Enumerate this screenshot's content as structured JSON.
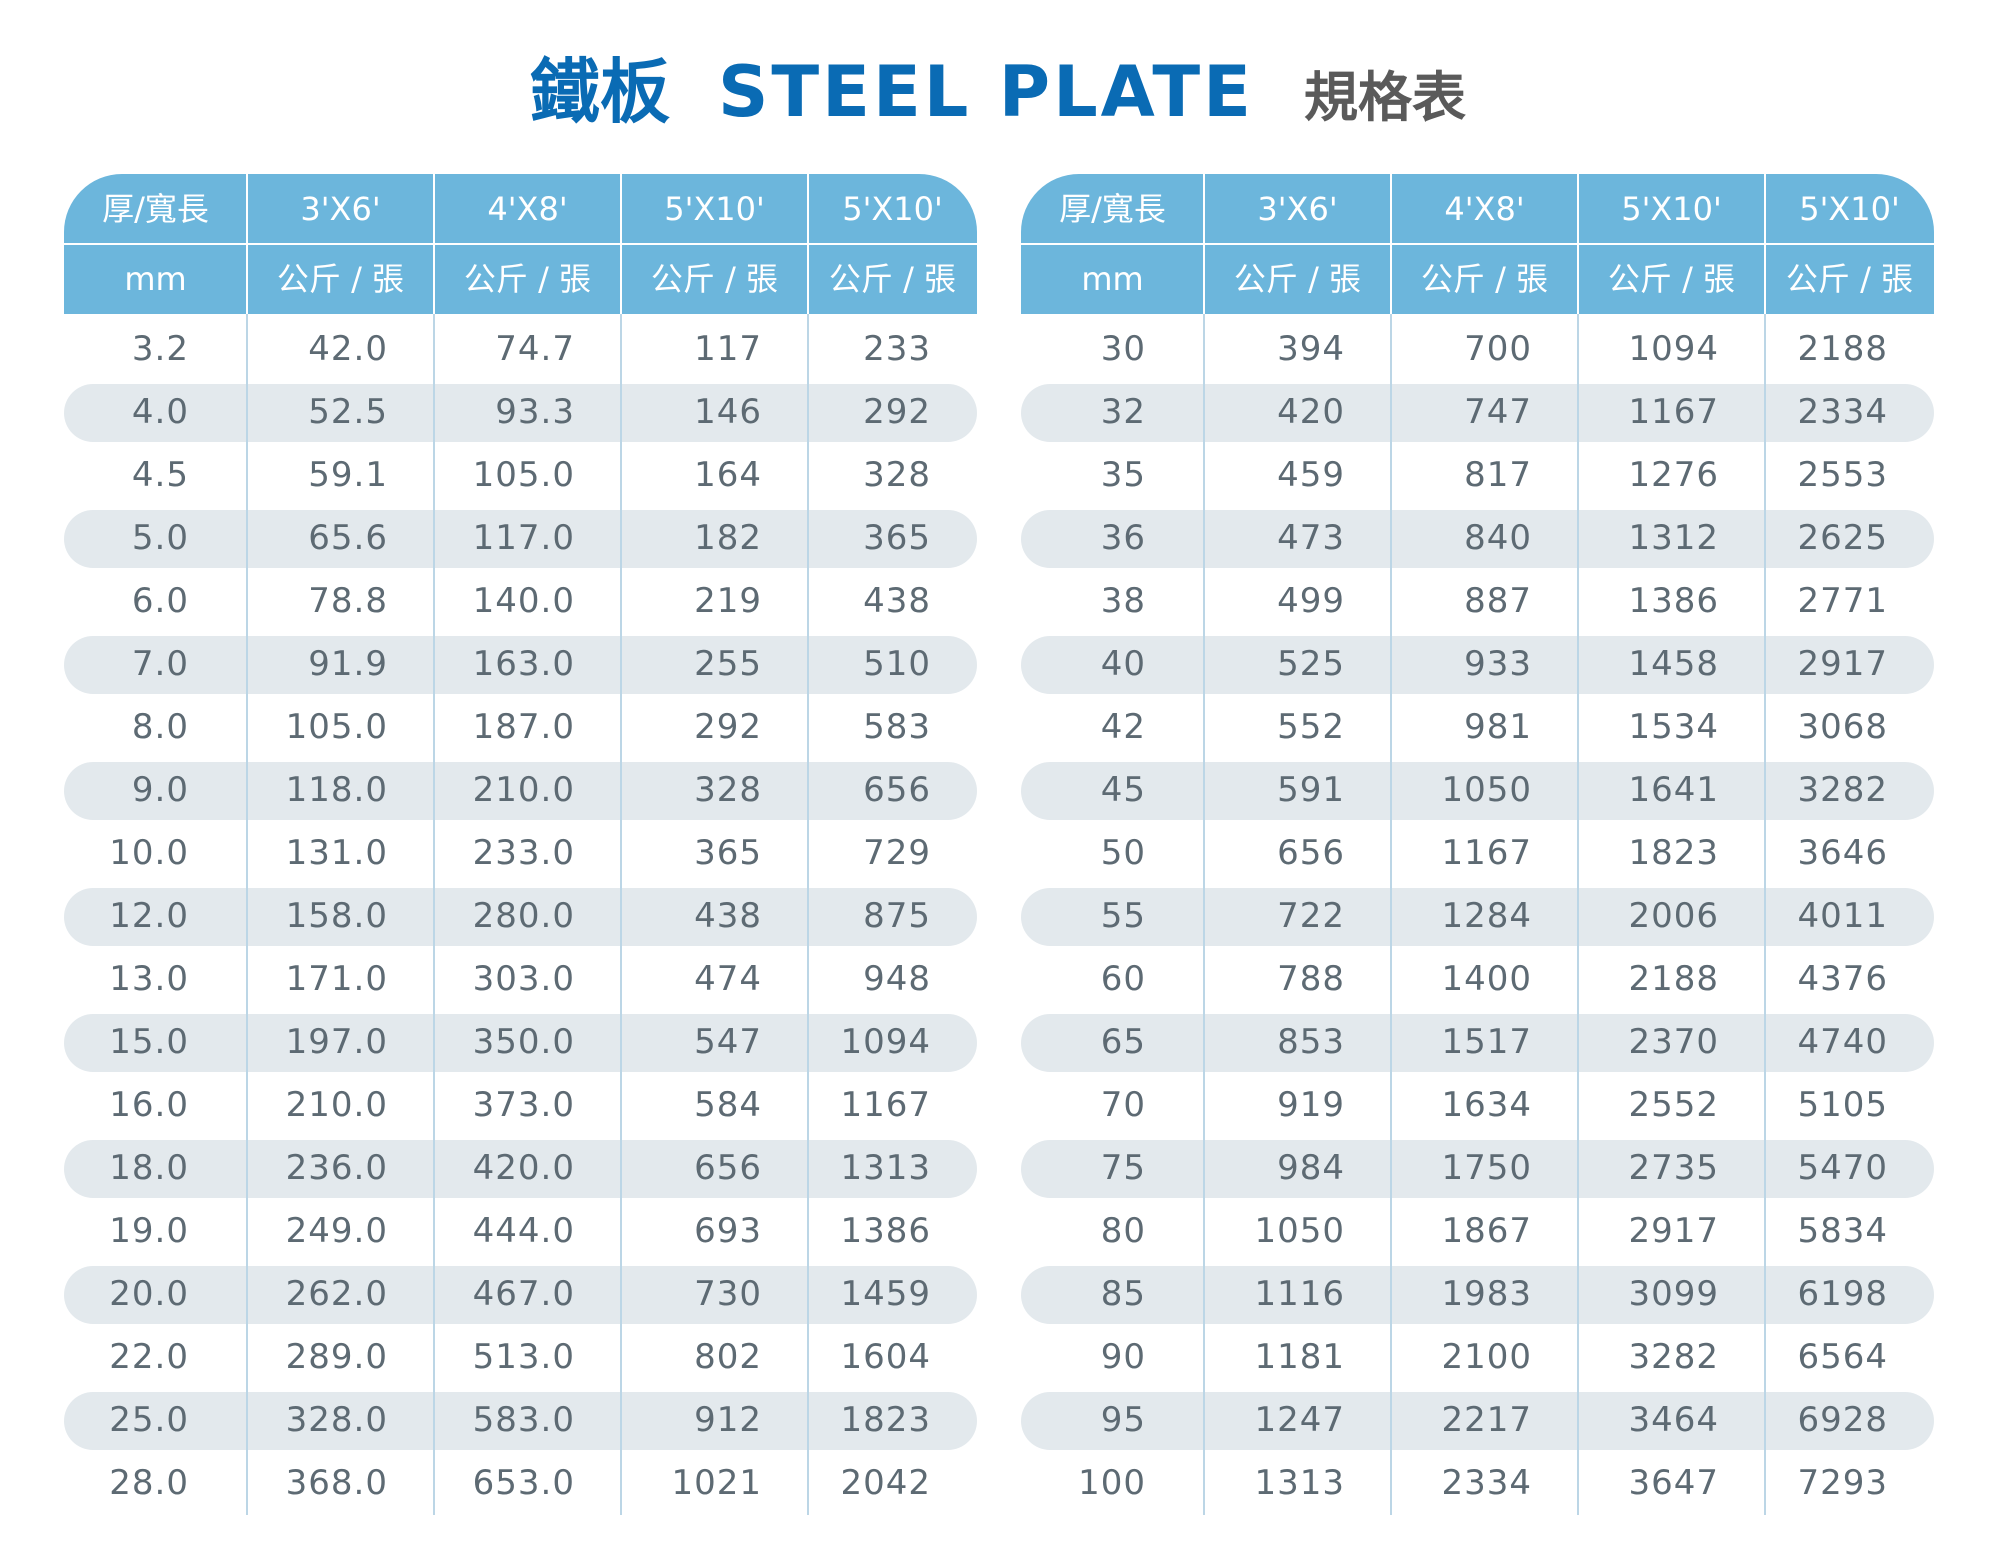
{
  "title": {
    "main": "鐵板",
    "english": "STEEL PLATE",
    "sub": "規格表"
  },
  "colors": {
    "title_blue": "#0a6bb4",
    "header_blue": "#6cb6dc",
    "stripe_gray": "#e3e9ed",
    "text_gray": "#5d6a73"
  },
  "tables": [
    {
      "headers": [
        "厚/寬長",
        "3'X6'",
        "4'X8'",
        "5'X10'",
        "5'X10'"
      ],
      "units": [
        "mm",
        "公斤 / 張",
        "公斤 / 張",
        "公斤 / 張",
        "公斤 / 張"
      ],
      "rows": [
        [
          "3.2",
          "42.0",
          "74.7",
          "117",
          "233"
        ],
        [
          "4.0",
          "52.5",
          "93.3",
          "146",
          "292"
        ],
        [
          "4.5",
          "59.1",
          "105.0",
          "164",
          "328"
        ],
        [
          "5.0",
          "65.6",
          "117.0",
          "182",
          "365"
        ],
        [
          "6.0",
          "78.8",
          "140.0",
          "219",
          "438"
        ],
        [
          "7.0",
          "91.9",
          "163.0",
          "255",
          "510"
        ],
        [
          "8.0",
          "105.0",
          "187.0",
          "292",
          "583"
        ],
        [
          "9.0",
          "118.0",
          "210.0",
          "328",
          "656"
        ],
        [
          "10.0",
          "131.0",
          "233.0",
          "365",
          "729"
        ],
        [
          "12.0",
          "158.0",
          "280.0",
          "438",
          "875"
        ],
        [
          "13.0",
          "171.0",
          "303.0",
          "474",
          "948"
        ],
        [
          "15.0",
          "197.0",
          "350.0",
          "547",
          "1094"
        ],
        [
          "16.0",
          "210.0",
          "373.0",
          "584",
          "1167"
        ],
        [
          "18.0",
          "236.0",
          "420.0",
          "656",
          "1313"
        ],
        [
          "19.0",
          "249.0",
          "444.0",
          "693",
          "1386"
        ],
        [
          "20.0",
          "262.0",
          "467.0",
          "730",
          "1459"
        ],
        [
          "22.0",
          "289.0",
          "513.0",
          "802",
          "1604"
        ],
        [
          "25.0",
          "328.0",
          "583.0",
          "912",
          "1823"
        ],
        [
          "28.0",
          "368.0",
          "653.0",
          "1021",
          "2042"
        ]
      ]
    },
    {
      "headers": [
        "厚/寬長",
        "3'X6'",
        "4'X8'",
        "5'X10'",
        "5'X10'"
      ],
      "units": [
        "mm",
        "公斤 / 張",
        "公斤 / 張",
        "公斤 / 張",
        "公斤 / 張"
      ],
      "rows": [
        [
          "30",
          "394",
          "700",
          "1094",
          "2188"
        ],
        [
          "32",
          "420",
          "747",
          "1167",
          "2334"
        ],
        [
          "35",
          "459",
          "817",
          "1276",
          "2553"
        ],
        [
          "36",
          "473",
          "840",
          "1312",
          "2625"
        ],
        [
          "38",
          "499",
          "887",
          "1386",
          "2771"
        ],
        [
          "40",
          "525",
          "933",
          "1458",
          "2917"
        ],
        [
          "42",
          "552",
          "981",
          "1534",
          "3068"
        ],
        [
          "45",
          "591",
          "1050",
          "1641",
          "3282"
        ],
        [
          "50",
          "656",
          "1167",
          "1823",
          "3646"
        ],
        [
          "55",
          "722",
          "1284",
          "2006",
          "4011"
        ],
        [
          "60",
          "788",
          "1400",
          "2188",
          "4376"
        ],
        [
          "65",
          "853",
          "1517",
          "2370",
          "4740"
        ],
        [
          "70",
          "919",
          "1634",
          "2552",
          "5105"
        ],
        [
          "75",
          "984",
          "1750",
          "2735",
          "5470"
        ],
        [
          "80",
          "1050",
          "1867",
          "2917",
          "5834"
        ],
        [
          "85",
          "1116",
          "1983",
          "3099",
          "6198"
        ],
        [
          "90",
          "1181",
          "2100",
          "3282",
          "6564"
        ],
        [
          "95",
          "1247",
          "2217",
          "3464",
          "6928"
        ],
        [
          "100",
          "1313",
          "2334",
          "3647",
          "7293"
        ]
      ]
    }
  ]
}
